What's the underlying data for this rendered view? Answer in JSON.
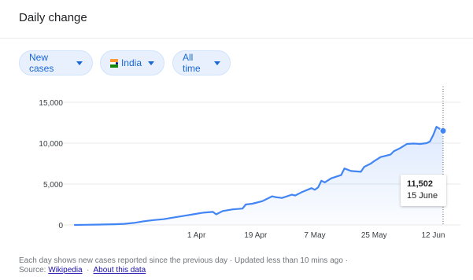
{
  "header": {
    "title": "Daily change"
  },
  "filters": {
    "metric_label": "New cases",
    "region_label": "India",
    "range_label": "All time"
  },
  "colors": {
    "line": "#4285f4",
    "fill": "#e8f0fe",
    "chip_text": "#1967d2"
  },
  "tooltip": {
    "value": "11,502",
    "date": "15 June"
  },
  "footer": {
    "note": "Each day shows new cases reported since the previous day · Updated less than 10 mins ago ·",
    "source_prefix": "Source:",
    "source_link": "Wikipedia",
    "about_link": "About this data"
  },
  "chart_data": {
    "type": "area",
    "title": "",
    "xlabel": "",
    "ylabel": "",
    "ylim": [
      0,
      15000
    ],
    "yticks": [
      0,
      5000,
      10000,
      15000
    ],
    "ytick_labels": [
      "0",
      "5,000",
      "10,000",
      "15,000"
    ],
    "xtick_labels": [
      "1 Apr",
      "19 Apr",
      "7 May",
      "25 May",
      "12 Jun"
    ],
    "xtick_days": [
      16,
      34,
      52,
      70,
      88
    ],
    "grid": true,
    "series": [
      {
        "x": [
          -21,
          -18,
          -15,
          -12,
          -9,
          -6,
          -3,
          0,
          3,
          6,
          9,
          12,
          15,
          18,
          21,
          22,
          24,
          27,
          30,
          31,
          33,
          36,
          39,
          40,
          42,
          45,
          46,
          48,
          51,
          52,
          53,
          54,
          55,
          57,
          60,
          61,
          63,
          66,
          67,
          69,
          70,
          72,
          75,
          76,
          78,
          80,
          82,
          84,
          86,
          87,
          88,
          89,
          91
        ],
        "y": [
          0,
          20,
          40,
          60,
          90,
          130,
          250,
          450,
          600,
          700,
          900,
          1100,
          1300,
          1500,
          1600,
          1300,
          1700,
          1900,
          2000,
          2500,
          2600,
          2900,
          3500,
          3400,
          3300,
          3700,
          3600,
          4000,
          4500,
          4300,
          4600,
          5400,
          5200,
          5700,
          6100,
          6900,
          6600,
          6500,
          7100,
          7500,
          7800,
          8300,
          8600,
          9000,
          9400,
          9900,
          9950,
          9900,
          10000,
          10200,
          11000,
          12000,
          11502
        ]
      }
    ],
    "annotation": {
      "x": 91,
      "value": "11,502",
      "label": "15 June"
    }
  }
}
